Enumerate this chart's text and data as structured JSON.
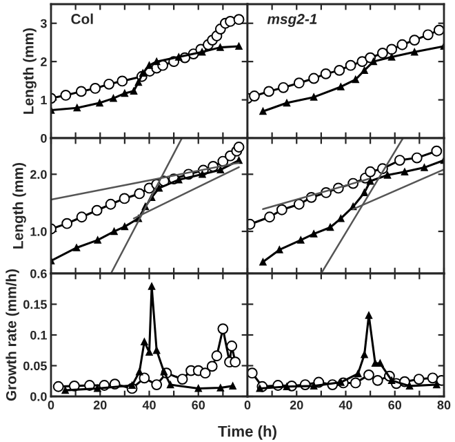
{
  "chart_data": [
    {
      "type": "line",
      "ylabel": "Length (mm)",
      "annotations": [
        "Col"
      ],
      "xlim": [
        0,
        80
      ],
      "ylim": [
        0,
        3.5
      ],
      "xticks": [
        0,
        {
          "value": 10,
          "label": null
        },
        {
          "value": 20,
          "label": null
        },
        {
          "value": 30,
          "label": null
        },
        {
          "value": 40,
          "label": null
        },
        {
          "value": 50,
          "label": null
        },
        {
          "value": 60,
          "label": null
        },
        {
          "value": 70,
          "label": null
        },
        {
          "value": 80,
          "label": null
        }
      ],
      "yticks": [
        0,
        1,
        2,
        3
      ],
      "tick_labels": "y",
      "grid": false,
      "series": [
        {
          "marker": "circle",
          "color": "#000000",
          "x": [
            0,
            6,
            12.3,
            18,
            23.6,
            29,
            37,
            40.2,
            43,
            45.5,
            50,
            54.5,
            58,
            61,
            64,
            65.7,
            67.5,
            69,
            71,
            73,
            76.5
          ],
          "values": [
            1.04,
            1.12,
            1.22,
            1.3,
            1.41,
            1.49,
            1.61,
            1.75,
            1.83,
            1.9,
            2.0,
            2.1,
            2.2,
            2.32,
            2.44,
            2.56,
            2.67,
            2.85,
            3.0,
            3.05,
            3.1
          ]
        },
        {
          "marker": "triangle",
          "color": "#000000",
          "x": [
            0,
            10.6,
            19.8,
            25.4,
            30,
            33.7,
            35.6,
            37.4,
            40,
            43,
            52,
            61.5,
            68.9,
            76.5
          ],
          "values": [
            0.73,
            0.79,
            0.92,
            1.04,
            1.17,
            1.23,
            1.46,
            1.7,
            1.9,
            2.0,
            2.12,
            2.25,
            2.37,
            2.4
          ]
        }
      ]
    },
    {
      "type": "line",
      "annotations": [
        "msg2-1"
      ],
      "xlim": [
        0,
        80
      ],
      "ylim": [
        0,
        3.5
      ],
      "xticks": [
        0,
        {
          "value": 10,
          "label": null
        },
        {
          "value": 20,
          "label": null
        },
        {
          "value": 30,
          "label": null
        },
        {
          "value": 40,
          "label": null
        },
        {
          "value": 50,
          "label": null
        },
        {
          "value": 60,
          "label": null
        },
        {
          "value": 70,
          "label": null
        },
        {
          "value": 80,
          "label": null
        }
      ],
      "yticks": [
        {
          "value": 0,
          "label": null
        },
        {
          "value": 1,
          "label": null
        },
        {
          "value": 2,
          "label": null
        },
        {
          "value": 3,
          "label": null
        }
      ],
      "tick_labels": false,
      "grid": false,
      "series": [
        {
          "marker": "circle",
          "color": "#000000",
          "x": [
            0,
            2.8,
            8.7,
            14.6,
            21,
            27,
            31.9,
            37.4,
            42,
            46.7,
            50,
            55,
            58.7,
            63,
            68,
            73.5,
            78
          ],
          "values": [
            1.04,
            1.1,
            1.22,
            1.32,
            1.44,
            1.56,
            1.68,
            1.77,
            1.9,
            2.0,
            2.1,
            2.22,
            2.32,
            2.44,
            2.56,
            2.7,
            2.82
          ]
        },
        {
          "marker": "triangle",
          "color": "#000000",
          "x": [
            6.3,
            16,
            27,
            38,
            44,
            47.6,
            51.3,
            58.7,
            68,
            80
          ],
          "values": [
            0.7,
            0.92,
            1.07,
            1.34,
            1.53,
            1.77,
            2.0,
            2.12,
            2.25,
            2.4
          ]
        }
      ]
    },
    {
      "type": "line",
      "log": "y",
      "ylabel": "Length (mm)",
      "xlim": [
        0,
        80
      ],
      "ylim": [
        0.6,
        3.1
      ],
      "xticks": [
        0,
        {
          "value": 10,
          "label": null
        },
        {
          "value": 20,
          "label": null
        },
        {
          "value": 30,
          "label": null
        },
        {
          "value": 40,
          "label": null
        },
        {
          "value": 50,
          "label": null
        },
        {
          "value": 60,
          "label": null
        },
        {
          "value": 70,
          "label": null
        },
        {
          "value": 80,
          "label": null
        }
      ],
      "yticks": [
        {
          "value": 0.6,
          "label": "0.6"
        },
        {
          "value": 1,
          "label": "1.0"
        },
        {
          "value": 2,
          "label": "2.0"
        }
      ],
      "tick_labels": "y",
      "grid": false,
      "series": [
        {
          "marker": "circle",
          "color": "#000000",
          "x": [
            0,
            6.5,
            12.5,
            18.7,
            24.3,
            29.9,
            36,
            40,
            43,
            46,
            50,
            56,
            62,
            66,
            70,
            73,
            75.6,
            76.5
          ],
          "values": [
            1.03,
            1.1,
            1.19,
            1.29,
            1.39,
            1.49,
            1.58,
            1.69,
            1.77,
            1.84,
            1.89,
            2.0,
            2.1,
            2.2,
            2.34,
            2.5,
            2.65,
            2.78
          ]
        },
        {
          "marker": "triangle",
          "color": "#000000",
          "x": [
            0,
            10.4,
            19,
            25.7,
            30,
            35.6,
            38.4,
            41,
            44,
            52,
            61.6,
            69,
            76.5
          ],
          "values": [
            0.7,
            0.82,
            0.9,
            1.0,
            1.06,
            1.17,
            1.35,
            1.51,
            1.69,
            1.87,
            2.0,
            2.11,
            2.37
          ]
        },
        {
          "marker": "none",
          "color": "#555555",
          "x": [
            0,
            76.5
          ],
          "values": [
            1.47,
            2.3
          ]
        },
        {
          "marker": "none",
          "color": "#555555",
          "x": [
            24.4,
            53.3
          ],
          "values": [
            0.6,
            3.1
          ]
        },
        {
          "marker": "none",
          "color": "#555555",
          "x": [
            33.7,
            76.5
          ],
          "values": [
            1.17,
            2.18
          ]
        }
      ]
    },
    {
      "type": "line",
      "log": "y",
      "xlim": [
        0,
        80
      ],
      "ylim": [
        0.6,
        3.1
      ],
      "xticks": [
        0,
        {
          "value": 10,
          "label": null
        },
        {
          "value": 20,
          "label": null
        },
        {
          "value": 30,
          "label": null
        },
        {
          "value": 40,
          "label": null
        },
        {
          "value": 50,
          "label": null
        },
        {
          "value": 60,
          "label": null
        },
        {
          "value": 70,
          "label": null
        },
        {
          "value": 80,
          "label": null
        }
      ],
      "yticks": [
        {
          "value": 0.6,
          "label": null
        },
        {
          "value": 1,
          "label": null
        },
        {
          "value": 2,
          "label": null
        }
      ],
      "tick_labels": false,
      "grid": false,
      "series": [
        {
          "marker": "circle",
          "color": "#000000",
          "x": [
            1,
            9,
            14,
            21,
            26,
            32,
            37,
            43,
            48,
            50,
            55,
            62,
            69,
            77
          ],
          "values": [
            1.09,
            1.19,
            1.3,
            1.39,
            1.51,
            1.6,
            1.69,
            1.79,
            1.91,
            2.06,
            2.14,
            2.37,
            2.44,
            2.65
          ]
        },
        {
          "marker": "triangle",
          "color": "#000000",
          "x": [
            6.3,
            13,
            21.7,
            27,
            33.7,
            38,
            43,
            47.6,
            50,
            57,
            64,
            72,
            80
          ],
          "values": [
            0.69,
            0.8,
            0.9,
            0.97,
            1.05,
            1.17,
            1.35,
            1.6,
            1.84,
            1.98,
            2.06,
            2.17,
            2.37
          ]
        },
        {
          "marker": "none",
          "color": "#555555",
          "x": [
            6.3,
            49.4
          ],
          "values": [
            1.31,
            1.89
          ]
        },
        {
          "marker": "none",
          "color": "#555555",
          "x": [
            30,
            63.3
          ],
          "values": [
            0.6,
            3.1
          ]
        },
        {
          "marker": "none",
          "color": "#555555",
          "x": [
            43,
            80
          ],
          "values": [
            1.31,
            2.12
          ]
        }
      ]
    },
    {
      "type": "line",
      "ylabel": "Growth rate (mm/h)",
      "xlabel": "Time (h)",
      "xlim": [
        0,
        80
      ],
      "ylim": [
        0,
        0.2
      ],
      "xticks": [
        0,
        {
          "value": 10,
          "label": null
        },
        20,
        {
          "value": 30,
          "label": null
        },
        40,
        {
          "value": 50,
          "label": null
        },
        60,
        {
          "value": 70,
          "label": null
        },
        {
          "value": 80,
          "label": null
        }
      ],
      "yticks": [
        {
          "value": 0,
          "label": "0.0"
        },
        0.05,
        0.1,
        0.15
      ],
      "grid": false,
      "series": [
        {
          "marker": "circle",
          "color": "#000000",
          "x": [
            3,
            9.5,
            15.7,
            21.7,
            26,
            33,
            38,
            43,
            47,
            53.5,
            57,
            60,
            62.8,
            65.6,
            67.5,
            70,
            72.7,
            73.6,
            75
          ],
          "values": [
            0.016,
            0.017,
            0.018,
            0.018,
            0.02,
            0.013,
            0.03,
            0.019,
            0.038,
            0.028,
            0.042,
            0.042,
            0.038,
            0.049,
            0.066,
            0.11,
            0.056,
            0.082,
            0.056
          ]
        },
        {
          "marker": "triangle",
          "color": "#000000",
          "x": [
            5.8,
            18.9,
            33,
            36,
            38,
            40,
            41,
            43,
            46,
            48.6,
            60,
            69,
            74
          ],
          "values": [
            0.01,
            0.013,
            0.018,
            0.04,
            0.089,
            0.072,
            0.179,
            0.075,
            0.04,
            0.019,
            0.013,
            0.014,
            0.017
          ]
        }
      ]
    },
    {
      "type": "line",
      "xlim": [
        0,
        80
      ],
      "ylim": [
        0,
        0.2
      ],
      "xticks": [
        0,
        {
          "value": 10,
          "label": null
        },
        20,
        {
          "value": 30,
          "label": null
        },
        40,
        {
          "value": 50,
          "label": null
        },
        60,
        {
          "value": 70,
          "label": null
        },
        80
      ],
      "yticks": [
        {
          "value": 0,
          "label": null
        },
        {
          "value": 0.05,
          "label": null
        },
        {
          "value": 0.1,
          "label": null
        },
        {
          "value": 0.15,
          "label": null
        }
      ],
      "tick_labels": "x",
      "grid": false,
      "series": [
        {
          "marker": "circle",
          "color": "#000000",
          "x": [
            1.9,
            6,
            12.4,
            18,
            23.5,
            29,
            34.6,
            39,
            44,
            49.4,
            53,
            57.8,
            60.6,
            64,
            69.8,
            75.4,
            79
          ],
          "values": [
            0.038,
            0.016,
            0.018,
            0.017,
            0.019,
            0.023,
            0.019,
            0.022,
            0.022,
            0.035,
            0.026,
            0.033,
            0.021,
            0.024,
            0.028,
            0.03,
            0.026
          ]
        },
        {
          "marker": "triangle",
          "color": "#000000",
          "x": [
            5,
            16,
            27,
            38,
            45,
            47.6,
            49.4,
            52,
            54,
            58.7,
            66,
            77
          ],
          "values": [
            0.013,
            0.016,
            0.017,
            0.023,
            0.037,
            0.068,
            0.132,
            0.054,
            0.054,
            0.026,
            0.017,
            0.019
          ]
        }
      ]
    }
  ]
}
